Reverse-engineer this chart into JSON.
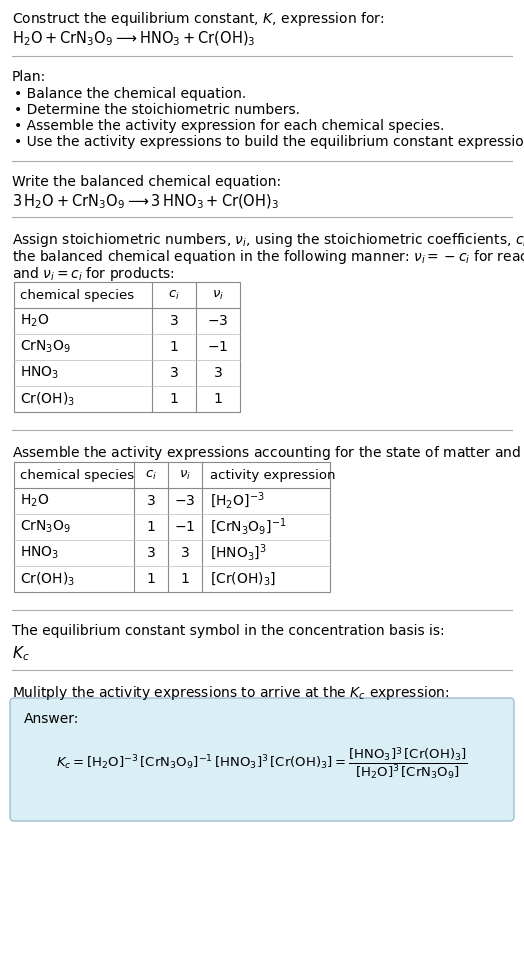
{
  "title_line1": "Construct the equilibrium constant, $K$, expression for:",
  "title_line2": "$\\mathrm{H_2O + CrN_3O_9 \\longrightarrow HNO_3 + Cr(OH)_3}$",
  "plan_header": "Plan:",
  "plan_items": [
    "• Balance the chemical equation.",
    "• Determine the stoichiometric numbers.",
    "• Assemble the activity expression for each chemical species.",
    "• Use the activity expressions to build the equilibrium constant expression."
  ],
  "balanced_header": "Write the balanced chemical equation:",
  "balanced_eq": "$\\mathrm{3\\,H_2O + CrN_3O_9 \\longrightarrow 3\\,HNO_3 + Cr(OH)_3}$",
  "stoich_header_line1": "Assign stoichiometric numbers, $\\nu_i$, using the stoichiometric coefficients, $c_i$, from",
  "stoich_header_line2": "the balanced chemical equation in the following manner: $\\nu_i = -c_i$ for reactants",
  "stoich_header_line3": "and $\\nu_i = c_i$ for products:",
  "table1_headers": [
    "chemical species",
    "$c_i$",
    "$\\nu_i$"
  ],
  "table1_rows": [
    [
      "$\\mathrm{H_2O}$",
      "3",
      "$-3$"
    ],
    [
      "$\\mathrm{CrN_3O_9}$",
      "1",
      "$-1$"
    ],
    [
      "$\\mathrm{HNO_3}$",
      "3",
      "3"
    ],
    [
      "$\\mathrm{Cr(OH)_3}$",
      "1",
      "1"
    ]
  ],
  "activity_header": "Assemble the activity expressions accounting for the state of matter and $\\nu_i$:",
  "table2_headers": [
    "chemical species",
    "$c_i$",
    "$\\nu_i$",
    "activity expression"
  ],
  "table2_rows": [
    [
      "$\\mathrm{H_2O}$",
      "3",
      "$-3$",
      "$[\\mathrm{H_2O}]^{-3}$"
    ],
    [
      "$\\mathrm{CrN_3O_9}$",
      "1",
      "$-1$",
      "$[\\mathrm{CrN_3O_9}]^{-1}$"
    ],
    [
      "$\\mathrm{HNO_3}$",
      "3",
      "3",
      "$[\\mathrm{HNO_3}]^3$"
    ],
    [
      "$\\mathrm{Cr(OH)_3}$",
      "1",
      "1",
      "$[\\mathrm{Cr(OH)_3}]$"
    ]
  ],
  "kc_symbol_text": "The equilibrium constant symbol in the concentration basis is:",
  "kc_symbol": "$K_c$",
  "multiply_header": "Mulitply the activity expressions to arrive at the $K_c$ expression:",
  "answer_label": "Answer:",
  "answer_expr_line1": "$K_c = [\\mathrm{H_2O}]^{-3}\\,[\\mathrm{CrN_3O_9}]^{-1}\\,[\\mathrm{HNO_3}]^3\\,[\\mathrm{Cr(OH)_3}] = \\dfrac{[\\mathrm{HNO_3}]^3\\,[\\mathrm{Cr(OH)_3}]}{[\\mathrm{H_2O}]^3\\,[\\mathrm{CrN_3O_9}]}$",
  "bg_color": "#ffffff",
  "answer_box_bg": "#daeef5",
  "answer_box_border": "#a0bece",
  "divider_color": "#aaaaaa",
  "text_color": "#000000",
  "font_size": 10.0
}
